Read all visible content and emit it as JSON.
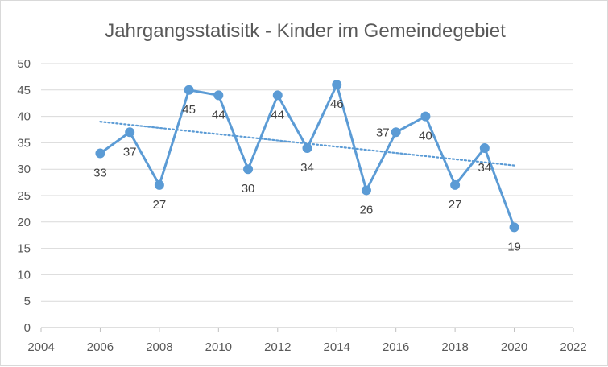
{
  "chart_data": {
    "type": "line",
    "title": "Jahrgangsstatisitk - Kinder im Gemeindegebiet",
    "xlabel": "",
    "ylabel": "",
    "xlim": [
      2004,
      2022
    ],
    "ylim": [
      0,
      50
    ],
    "x_ticks": [
      2004,
      2006,
      2008,
      2010,
      2012,
      2014,
      2016,
      2018,
      2020,
      2022
    ],
    "y_ticks": [
      0,
      5,
      10,
      15,
      20,
      25,
      30,
      35,
      40,
      45,
      50
    ],
    "grid": "horizontal",
    "legend": "none",
    "series": [
      {
        "x": [
          2006,
          2007,
          2008,
          2009,
          2010,
          2011,
          2012,
          2013,
          2014,
          2015,
          2016,
          2017,
          2018,
          2019,
          2020
        ],
        "values": [
          33,
          37,
          27,
          45,
          44,
          30,
          44,
          34,
          46,
          26,
          37,
          40,
          27,
          34,
          19
        ],
        "label_position": [
          "below",
          "below",
          "below",
          "below",
          "below",
          "below",
          "below",
          "below",
          "below",
          "below",
          "left",
          "below",
          "below",
          "below",
          "below"
        ],
        "color": "#5b9bd5",
        "marker": "circle"
      }
    ],
    "trendline": {
      "type": "linear",
      "style": "dotted",
      "color": "#5b9bd5",
      "x": [
        2006,
        2020
      ],
      "y": [
        39,
        30.7
      ]
    },
    "colors": {
      "gridline": "#d9d9d9",
      "axis": "#bfbfbf",
      "text": "#595959"
    }
  }
}
